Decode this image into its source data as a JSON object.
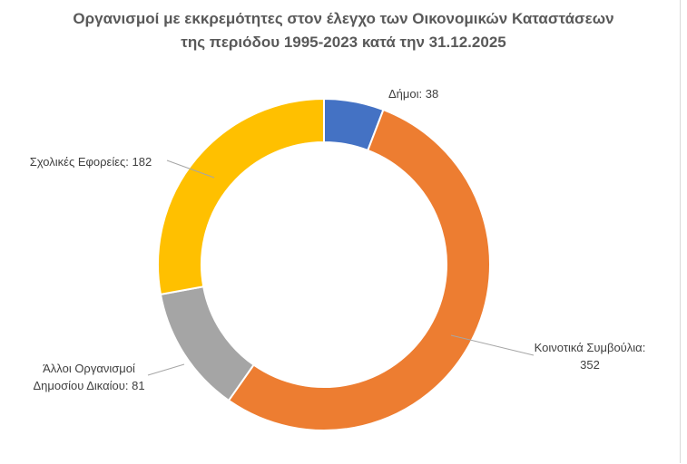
{
  "chart_data": {
    "type": "pie",
    "variant": "donut",
    "title_lines": [
      "Οργανισμοί με εκκρεμότητες στον έλεγχο των Οικονομικών Καταστάσεων",
      "της περιόδου 1995-2023 κατά την 31.12.2025"
    ],
    "slices": [
      {
        "label": "Δήμοι",
        "value": 38,
        "label_lines": [
          "Δήμοι: 38"
        ],
        "color": "#4472C4"
      },
      {
        "label": "Κοινοτικά Συμβούλια",
        "value": 352,
        "label_lines": [
          "Κοινοτικά Συμβούλια:",
          "352"
        ],
        "color": "#ED7D31"
      },
      {
        "label": "Άλλοι Οργανισμοί Δημοσίου Δικαίου",
        "value": 81,
        "label_lines": [
          "Άλλοι Οργανισμοί",
          "Δημοσίου Δικαίου: 81"
        ],
        "color": "#A5A5A5"
      },
      {
        "label": "Σχολικές Εφορείες",
        "value": 182,
        "label_lines": [
          "Σχολικές Εφορείες: 182"
        ],
        "color": "#FFC000"
      }
    ],
    "legend": "none",
    "leader_line_color": "#a6a6a6"
  }
}
